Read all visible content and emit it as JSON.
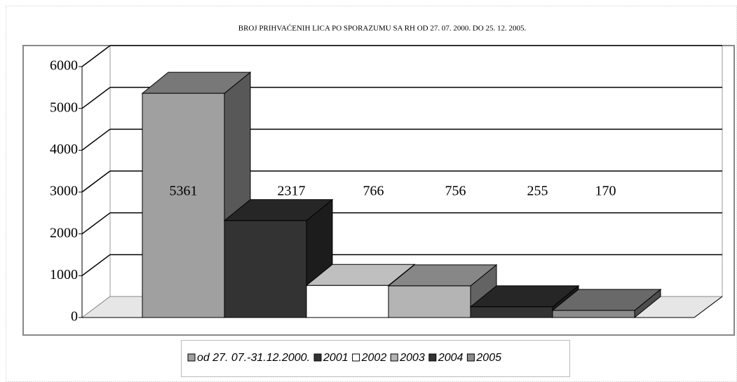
{
  "chart_data": {
    "type": "bar3d",
    "title": "BROJ PRIHVAĆENIH LICA PO SPORAZUMU SA RH  OD 27. 07. 2000. DO 25. 12. 2005.",
    "series": [
      {
        "name": "od 27. 07.-31.12.2000.",
        "color": "#a0a0a0",
        "values": [
          5361
        ]
      },
      {
        "name": "2001",
        "color": "#333333",
        "values": [
          2317
        ]
      },
      {
        "name": "2002",
        "color": "#ffffff",
        "values": [
          766
        ]
      },
      {
        "name": "2003",
        "color": "#b4b4b4",
        "values": [
          756
        ]
      },
      {
        "name": "2004",
        "color": "#333333",
        "values": [
          255
        ]
      },
      {
        "name": "2005",
        "color": "#8c8c8c",
        "values": [
          170
        ]
      }
    ],
    "ylim": [
      0,
      6000
    ],
    "yticks": [
      0,
      1000,
      2000,
      3000,
      4000,
      5000,
      6000
    ],
    "grid": true,
    "legend": "bottom"
  }
}
